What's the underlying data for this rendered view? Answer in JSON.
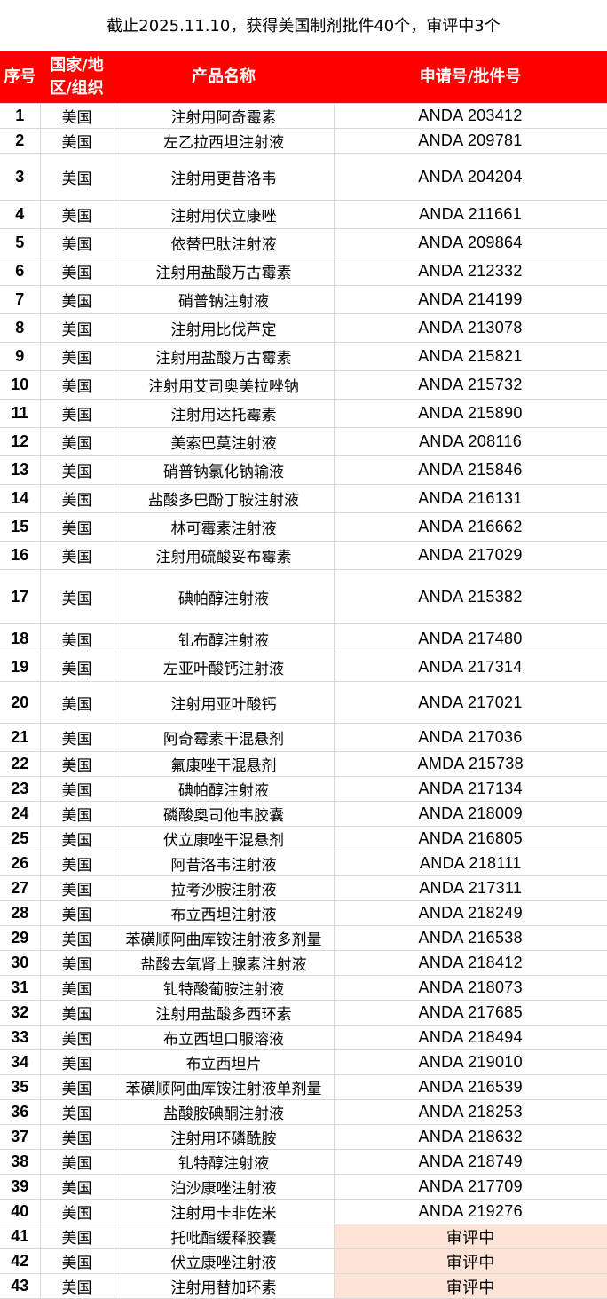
{
  "title": "截止2025.11.10，获得美国制剂批件40个，审评中3个",
  "colors": {
    "header_bg": "#ff0000",
    "header_text": "#ffffff",
    "pending_bg": "#fde4d7"
  },
  "headers": [
    "序号",
    "国家/地区/组织",
    "产品名称",
    "申请号/批件号"
  ],
  "rows": [
    [
      "1",
      "美国",
      "注射用阿奇霉素",
      "ANDA 203412"
    ],
    [
      "2",
      "美国",
      "左乙拉西坦注射液",
      "ANDA 209781"
    ],
    [
      "3",
      "美国",
      "注射用更昔洛韦",
      "ANDA 204204"
    ],
    [
      "4",
      "美国",
      "注射用伏立康唑",
      "ANDA 211661"
    ],
    [
      "5",
      "美国",
      "依替巴肽注射液",
      "ANDA 209864"
    ],
    [
      "6",
      "美国",
      "注射用盐酸万古霉素",
      "ANDA 212332"
    ],
    [
      "7",
      "美国",
      "硝普钠注射液",
      "ANDA 214199"
    ],
    [
      "8",
      "美国",
      "注射用比伐芦定",
      "ANDA 213078"
    ],
    [
      "9",
      "美国",
      "注射用盐酸万古霉素",
      "ANDA 215821"
    ],
    [
      "10",
      "美国",
      "注射用艾司奥美拉唑钠",
      "ANDA 215732"
    ],
    [
      "11",
      "美国",
      "注射用达托霉素",
      "ANDA 215890"
    ],
    [
      "12",
      "美国",
      "美索巴莫注射液",
      "ANDA 208116"
    ],
    [
      "13",
      "美国",
      "硝普钠氯化钠输液",
      "ANDA 215846"
    ],
    [
      "14",
      "美国",
      "盐酸多巴酚丁胺注射液",
      "ANDA 216131"
    ],
    [
      "15",
      "美国",
      "林可霉素注射液",
      "ANDA 216662"
    ],
    [
      "16",
      "美国",
      "注射用硫酸妥布霉素",
      "ANDA 217029"
    ],
    [
      "17",
      "美国",
      "碘帕醇注射液",
      "ANDA 215382"
    ],
    [
      "18",
      "美国",
      "钆布醇注射液",
      "ANDA 217480"
    ],
    [
      "19",
      "美国",
      "左亚叶酸钙注射液",
      "ANDA 217314"
    ],
    [
      "20",
      "美国",
      "注射用亚叶酸钙",
      "ANDA 217021"
    ],
    [
      "21",
      "美国",
      "阿奇霉素干混悬剂",
      "ANDA 217036"
    ],
    [
      "22",
      "美国",
      "氟康唑干混悬剂",
      "AMDA 215738"
    ],
    [
      "23",
      "美国",
      "碘帕醇注射液",
      "ANDA 217134"
    ],
    [
      "24",
      "美国",
      "磷酸奥司他韦胶囊",
      "ANDA 218009"
    ],
    [
      "25",
      "美国",
      "伏立康唑干混悬剂",
      "ANDA 216805"
    ],
    [
      "26",
      "美国",
      "阿昔洛韦注射液",
      "ANDA 218111"
    ],
    [
      "27",
      "美国",
      "拉考沙胺注射液",
      "ANDA 217311"
    ],
    [
      "28",
      "美国",
      "布立西坦注射液",
      "ANDA 218249"
    ],
    [
      "29",
      "美国",
      "苯磺顺阿曲库铵注射液多剂量",
      "ANDA 216538"
    ],
    [
      "30",
      "美国",
      "盐酸去氧肾上腺素注射液",
      "ANDA 218412"
    ],
    [
      "31",
      "美国",
      "钆特酸葡胺注射液",
      "ANDA 218073"
    ],
    [
      "32",
      "美国",
      "注射用盐酸多西环素",
      "ANDA 217685"
    ],
    [
      "33",
      "美国",
      "布立西坦口服溶液",
      "ANDA 218494"
    ],
    [
      "34",
      "美国",
      "布立西坦片",
      "ANDA 219010"
    ],
    [
      "35",
      "美国",
      "苯磺顺阿曲库铵注射液单剂量",
      "ANDA 216539"
    ],
    [
      "36",
      "美国",
      "盐酸胺碘酮注射液",
      "ANDA 218253"
    ],
    [
      "37",
      "美国",
      "注射用环磷酰胺",
      "ANDA 218632"
    ],
    [
      "38",
      "美国",
      "钆特醇注射液",
      "ANDA 218749"
    ],
    [
      "39",
      "美国",
      "泊沙康唑注射液",
      "ANDA 217709"
    ],
    [
      "40",
      "美国",
      "注射用卡非佐米",
      "ANDA 219276"
    ],
    [
      "41",
      "美国",
      "托吡酯缓释胶囊",
      "审评中"
    ],
    [
      "42",
      "美国",
      "伏立康唑注射液",
      "审评中"
    ],
    [
      "43",
      "美国",
      "注射用替加环素",
      "审评中"
    ]
  ],
  "pending_label": "审评中"
}
